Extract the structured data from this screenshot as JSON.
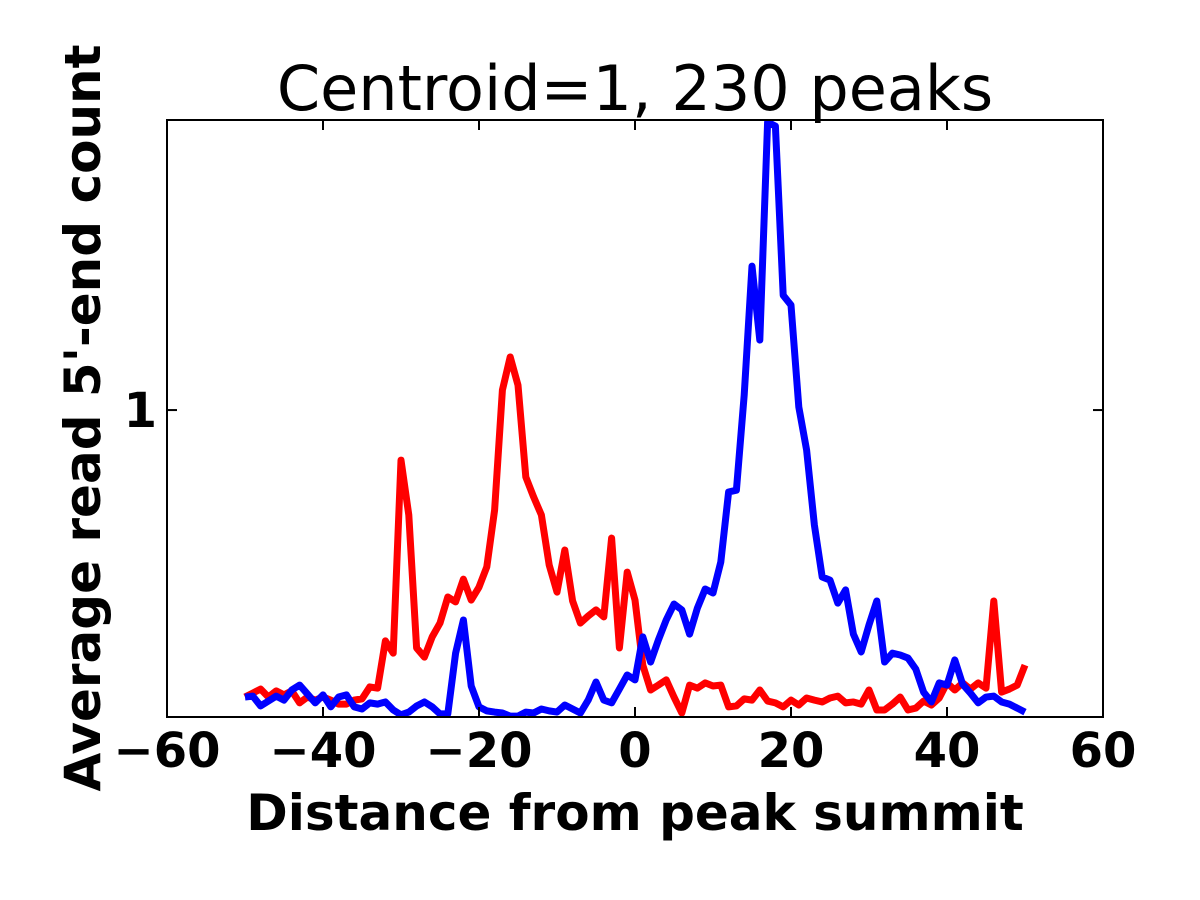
{
  "chart_data": {
    "type": "line",
    "title": "Centroid=1, 230 peaks",
    "x_label": "Distance from peak summit",
    "y_label": "Average read 5'-end count",
    "x": [
      -50,
      -49,
      -48,
      -47,
      -46,
      -45,
      -44,
      -43,
      -42,
      -41,
      -40,
      -39,
      -38,
      -37,
      -36,
      -35,
      -34,
      -33,
      -32,
      -31,
      -30,
      -29,
      -28,
      -27,
      -26,
      -25,
      -24,
      -23,
      -22,
      -21,
      -20,
      -19,
      -18,
      -17,
      -16,
      -15,
      -14,
      -13,
      -12,
      -11,
      -10,
      -9,
      -8,
      -7,
      -6,
      -5,
      -4,
      -3,
      -2,
      -1,
      0,
      1,
      2,
      3,
      4,
      5,
      6,
      7,
      8,
      9,
      10,
      11,
      12,
      13,
      14,
      15,
      16,
      17,
      18,
      19,
      20,
      21,
      22,
      23,
      24,
      25,
      26,
      27,
      28,
      29,
      30,
      31,
      32,
      33,
      34,
      35,
      36,
      37,
      38,
      39,
      40,
      41,
      42,
      43,
      44,
      45,
      46,
      47,
      48,
      49,
      50
    ],
    "series": [
      {
        "color": "#ff0000",
        "values": [
          0.065,
          0.078,
          0.091,
          0.065,
          0.085,
          0.072,
          0.085,
          0.046,
          0.065,
          0.055,
          0.065,
          0.055,
          0.042,
          0.042,
          0.055,
          0.059,
          0.098,
          0.094,
          0.248,
          0.208,
          0.837,
          0.658,
          0.225,
          0.195,
          0.261,
          0.306,
          0.391,
          0.375,
          0.449,
          0.381,
          0.423,
          0.489,
          0.674,
          1.065,
          1.173,
          1.081,
          0.782,
          0.717,
          0.658,
          0.495,
          0.407,
          0.544,
          0.378,
          0.306,
          0.329,
          0.349,
          0.326,
          0.583,
          0.225,
          0.472,
          0.381,
          0.169,
          0.088,
          0.104,
          0.121,
          0.065,
          0.013,
          0.104,
          0.094,
          0.111,
          0.101,
          0.104,
          0.033,
          0.036,
          0.059,
          0.055,
          0.088,
          0.052,
          0.046,
          0.033,
          0.055,
          0.039,
          0.062,
          0.055,
          0.049,
          0.062,
          0.068,
          0.046,
          0.049,
          0.042,
          0.088,
          0.023,
          0.023,
          0.042,
          0.065,
          0.023,
          0.029,
          0.052,
          0.039,
          0.062,
          0.111,
          0.088,
          0.111,
          0.091,
          0.111,
          0.094,
          0.378,
          0.081,
          0.091,
          0.104,
          0.169
        ]
      },
      {
        "color": "#0000ff",
        "values": [
          0.065,
          0.068,
          0.036,
          0.052,
          0.068,
          0.055,
          0.088,
          0.104,
          0.075,
          0.046,
          0.072,
          0.033,
          0.065,
          0.072,
          0.033,
          0.026,
          0.046,
          0.042,
          0.049,
          0.023,
          0.007,
          0.016,
          0.036,
          0.049,
          0.033,
          0.01,
          0.01,
          0.208,
          0.316,
          0.101,
          0.033,
          0.02,
          0.016,
          0.013,
          0.003,
          0.003,
          0.016,
          0.013,
          0.026,
          0.02,
          0.016,
          0.039,
          0.026,
          0.013,
          0.055,
          0.114,
          0.055,
          0.046,
          0.091,
          0.137,
          0.121,
          0.261,
          0.179,
          0.251,
          0.316,
          0.368,
          0.349,
          0.27,
          0.355,
          0.417,
          0.404,
          0.505,
          0.733,
          0.739,
          1.049,
          1.469,
          1.228,
          1.938,
          1.925,
          1.374,
          1.342,
          1.01,
          0.87,
          0.625,
          0.456,
          0.446,
          0.371,
          0.414,
          0.27,
          0.212,
          0.3,
          0.378,
          0.179,
          0.208,
          0.202,
          0.192,
          0.156,
          0.081,
          0.049,
          0.111,
          0.104,
          0.186,
          0.107,
          0.078,
          0.046,
          0.065,
          0.068,
          0.049,
          0.042,
          0.029,
          0.016
        ]
      }
    ],
    "xlim": [
      -60,
      60
    ],
    "xticks": [
      {
        "value": -60,
        "label": "−60"
      },
      {
        "value": -40,
        "label": "−40"
      },
      {
        "value": -20,
        "label": "−20"
      },
      0,
      20,
      40,
      60
    ],
    "ylim": [
      0,
      1.945
    ],
    "yticks": [
      1
    ]
  }
}
